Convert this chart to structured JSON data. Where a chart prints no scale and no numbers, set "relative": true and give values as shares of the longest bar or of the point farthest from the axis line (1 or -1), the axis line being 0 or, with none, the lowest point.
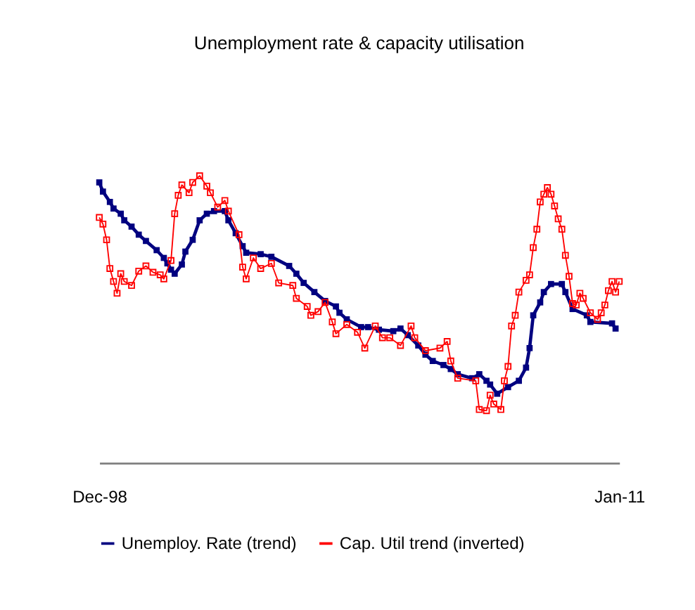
{
  "chart_data": {
    "type": "line",
    "title": "Unemployment rate & capacity utilisation",
    "relative": true,
    "marker": "square",
    "legend": "bottom",
    "grid": false,
    "tick_labels": "x",
    "xlim": [
      "1998-12",
      "2011-01"
    ],
    "xticks": [
      {
        "value": "1998-12",
        "label": "Dec-98"
      },
      {
        "value": "2011-01",
        "label": "Jan-11"
      }
    ],
    "series": [
      {
        "name": "Unemploy. Rate (trend)",
        "color": "#000080",
        "x": [
          "1998-12",
          "1999-01",
          "1999-03",
          "1999-04",
          "1999-06",
          "1999-07",
          "1999-09",
          "1999-11",
          "2000-01",
          "2000-04",
          "2000-06",
          "2000-07",
          "2000-08",
          "2000-09",
          "2000-11",
          "2000-12",
          "2001-02",
          "2001-04",
          "2001-06",
          "2001-08",
          "2001-11",
          "2001-12",
          "2002-02",
          "2002-04",
          "2002-05",
          "2002-09",
          "2002-12",
          "2003-05",
          "2003-07",
          "2003-09",
          "2003-12",
          "2004-03",
          "2004-06",
          "2004-07",
          "2004-09",
          "2005-01",
          "2005-03",
          "2005-06",
          "2005-10",
          "2005-12",
          "2006-02",
          "2006-05",
          "2006-07",
          "2006-09",
          "2006-12",
          "2007-02",
          "2007-04",
          "2007-08",
          "2007-10",
          "2007-12",
          "2008-01",
          "2008-03",
          "2008-06",
          "2008-09",
          "2008-11",
          "2008-12",
          "2009-01",
          "2009-03",
          "2009-04",
          "2009-06",
          "2009-09",
          "2009-10",
          "2009-12",
          "2010-04",
          "2010-05",
          "2010-11",
          "2010-12"
        ],
        "values": [
          0.977,
          0.945,
          0.909,
          0.886,
          0.868,
          0.845,
          0.823,
          0.795,
          0.773,
          0.741,
          0.714,
          0.695,
          0.673,
          0.659,
          0.691,
          0.736,
          0.777,
          0.845,
          0.868,
          0.877,
          0.877,
          0.845,
          0.8,
          0.755,
          0.732,
          0.727,
          0.718,
          0.686,
          0.659,
          0.627,
          0.595,
          0.564,
          0.545,
          0.523,
          0.5,
          0.473,
          0.473,
          0.464,
          0.459,
          0.468,
          0.445,
          0.409,
          0.377,
          0.355,
          0.341,
          0.327,
          0.309,
          0.295,
          0.309,
          0.286,
          0.273,
          0.241,
          0.264,
          0.286,
          0.332,
          0.4,
          0.514,
          0.559,
          0.595,
          0.623,
          0.623,
          0.595,
          0.536,
          0.514,
          0.491,
          0.486,
          0.468
        ]
      },
      {
        "name": "Cap. Util trend (inverted)",
        "color": "#ff0000",
        "x": [
          "1998-12",
          "1999-01",
          "1999-02",
          "1999-03",
          "1999-04",
          "1999-05",
          "1999-06",
          "1999-07",
          "1999-09",
          "1999-11",
          "2000-01",
          "2000-03",
          "2000-05",
          "2000-06",
          "2000-08",
          "2000-09",
          "2000-10",
          "2000-11",
          "2001-01",
          "2001-02",
          "2001-04",
          "2001-06",
          "2001-07",
          "2001-09",
          "2001-11",
          "2001-12",
          "2002-03",
          "2002-04",
          "2002-05",
          "2002-07",
          "2002-09",
          "2002-12",
          "2003-02",
          "2003-06",
          "2003-07",
          "2003-10",
          "2003-11",
          "2004-01",
          "2004-03",
          "2004-05",
          "2004-06",
          "2004-09",
          "2004-12",
          "2005-02",
          "2005-05",
          "2005-07",
          "2005-09",
          "2005-12",
          "2006-03",
          "2006-04",
          "2006-07",
          "2006-11",
          "2007-01",
          "2007-02",
          "2007-04",
          "2007-09",
          "2007-10",
          "2007-12",
          "2008-01",
          "2008-02",
          "2008-04",
          "2008-05",
          "2008-06",
          "2008-07",
          "2008-08",
          "2008-09",
          "2008-11",
          "2008-12",
          "2009-01",
          "2009-02",
          "2009-03",
          "2009-04",
          "2009-05",
          "2009-06",
          "2009-07",
          "2009-08",
          "2009-09",
          "2009-10",
          "2009-11",
          "2009-12",
          "2010-01",
          "2010-02",
          "2010-03",
          "2010-05",
          "2010-07",
          "2010-08",
          "2010-09",
          "2010-10",
          "2010-11",
          "2010-12",
          "2011-01"
        ],
        "values": [
          0.855,
          0.832,
          0.777,
          0.677,
          0.632,
          0.591,
          0.659,
          0.632,
          0.618,
          0.668,
          0.686,
          0.664,
          0.655,
          0.641,
          0.705,
          0.868,
          0.932,
          0.968,
          0.941,
          0.977,
          1,
          0.964,
          0.941,
          0.891,
          0.914,
          0.877,
          0.795,
          0.682,
          0.641,
          0.714,
          0.677,
          0.695,
          0.627,
          0.618,
          0.573,
          0.545,
          0.514,
          0.527,
          0.559,
          0.491,
          0.45,
          0.482,
          0.455,
          0.4,
          0.477,
          0.436,
          0.436,
          0.409,
          0.477,
          0.436,
          0.391,
          0.4,
          0.423,
          0.355,
          0.295,
          0.286,
          0.186,
          0.182,
          0.236,
          0.205,
          0.186,
          0.286,
          0.336,
          0.477,
          0.514,
          0.595,
          0.636,
          0.655,
          0.75,
          0.814,
          0.909,
          0.936,
          0.959,
          0.936,
          0.895,
          0.85,
          0.814,
          0.723,
          0.65,
          0.555,
          0.55,
          0.591,
          0.573,
          0.523,
          0.5,
          0.523,
          0.55,
          0.6,
          0.632,
          0.595,
          0.632
        ]
      }
    ]
  }
}
